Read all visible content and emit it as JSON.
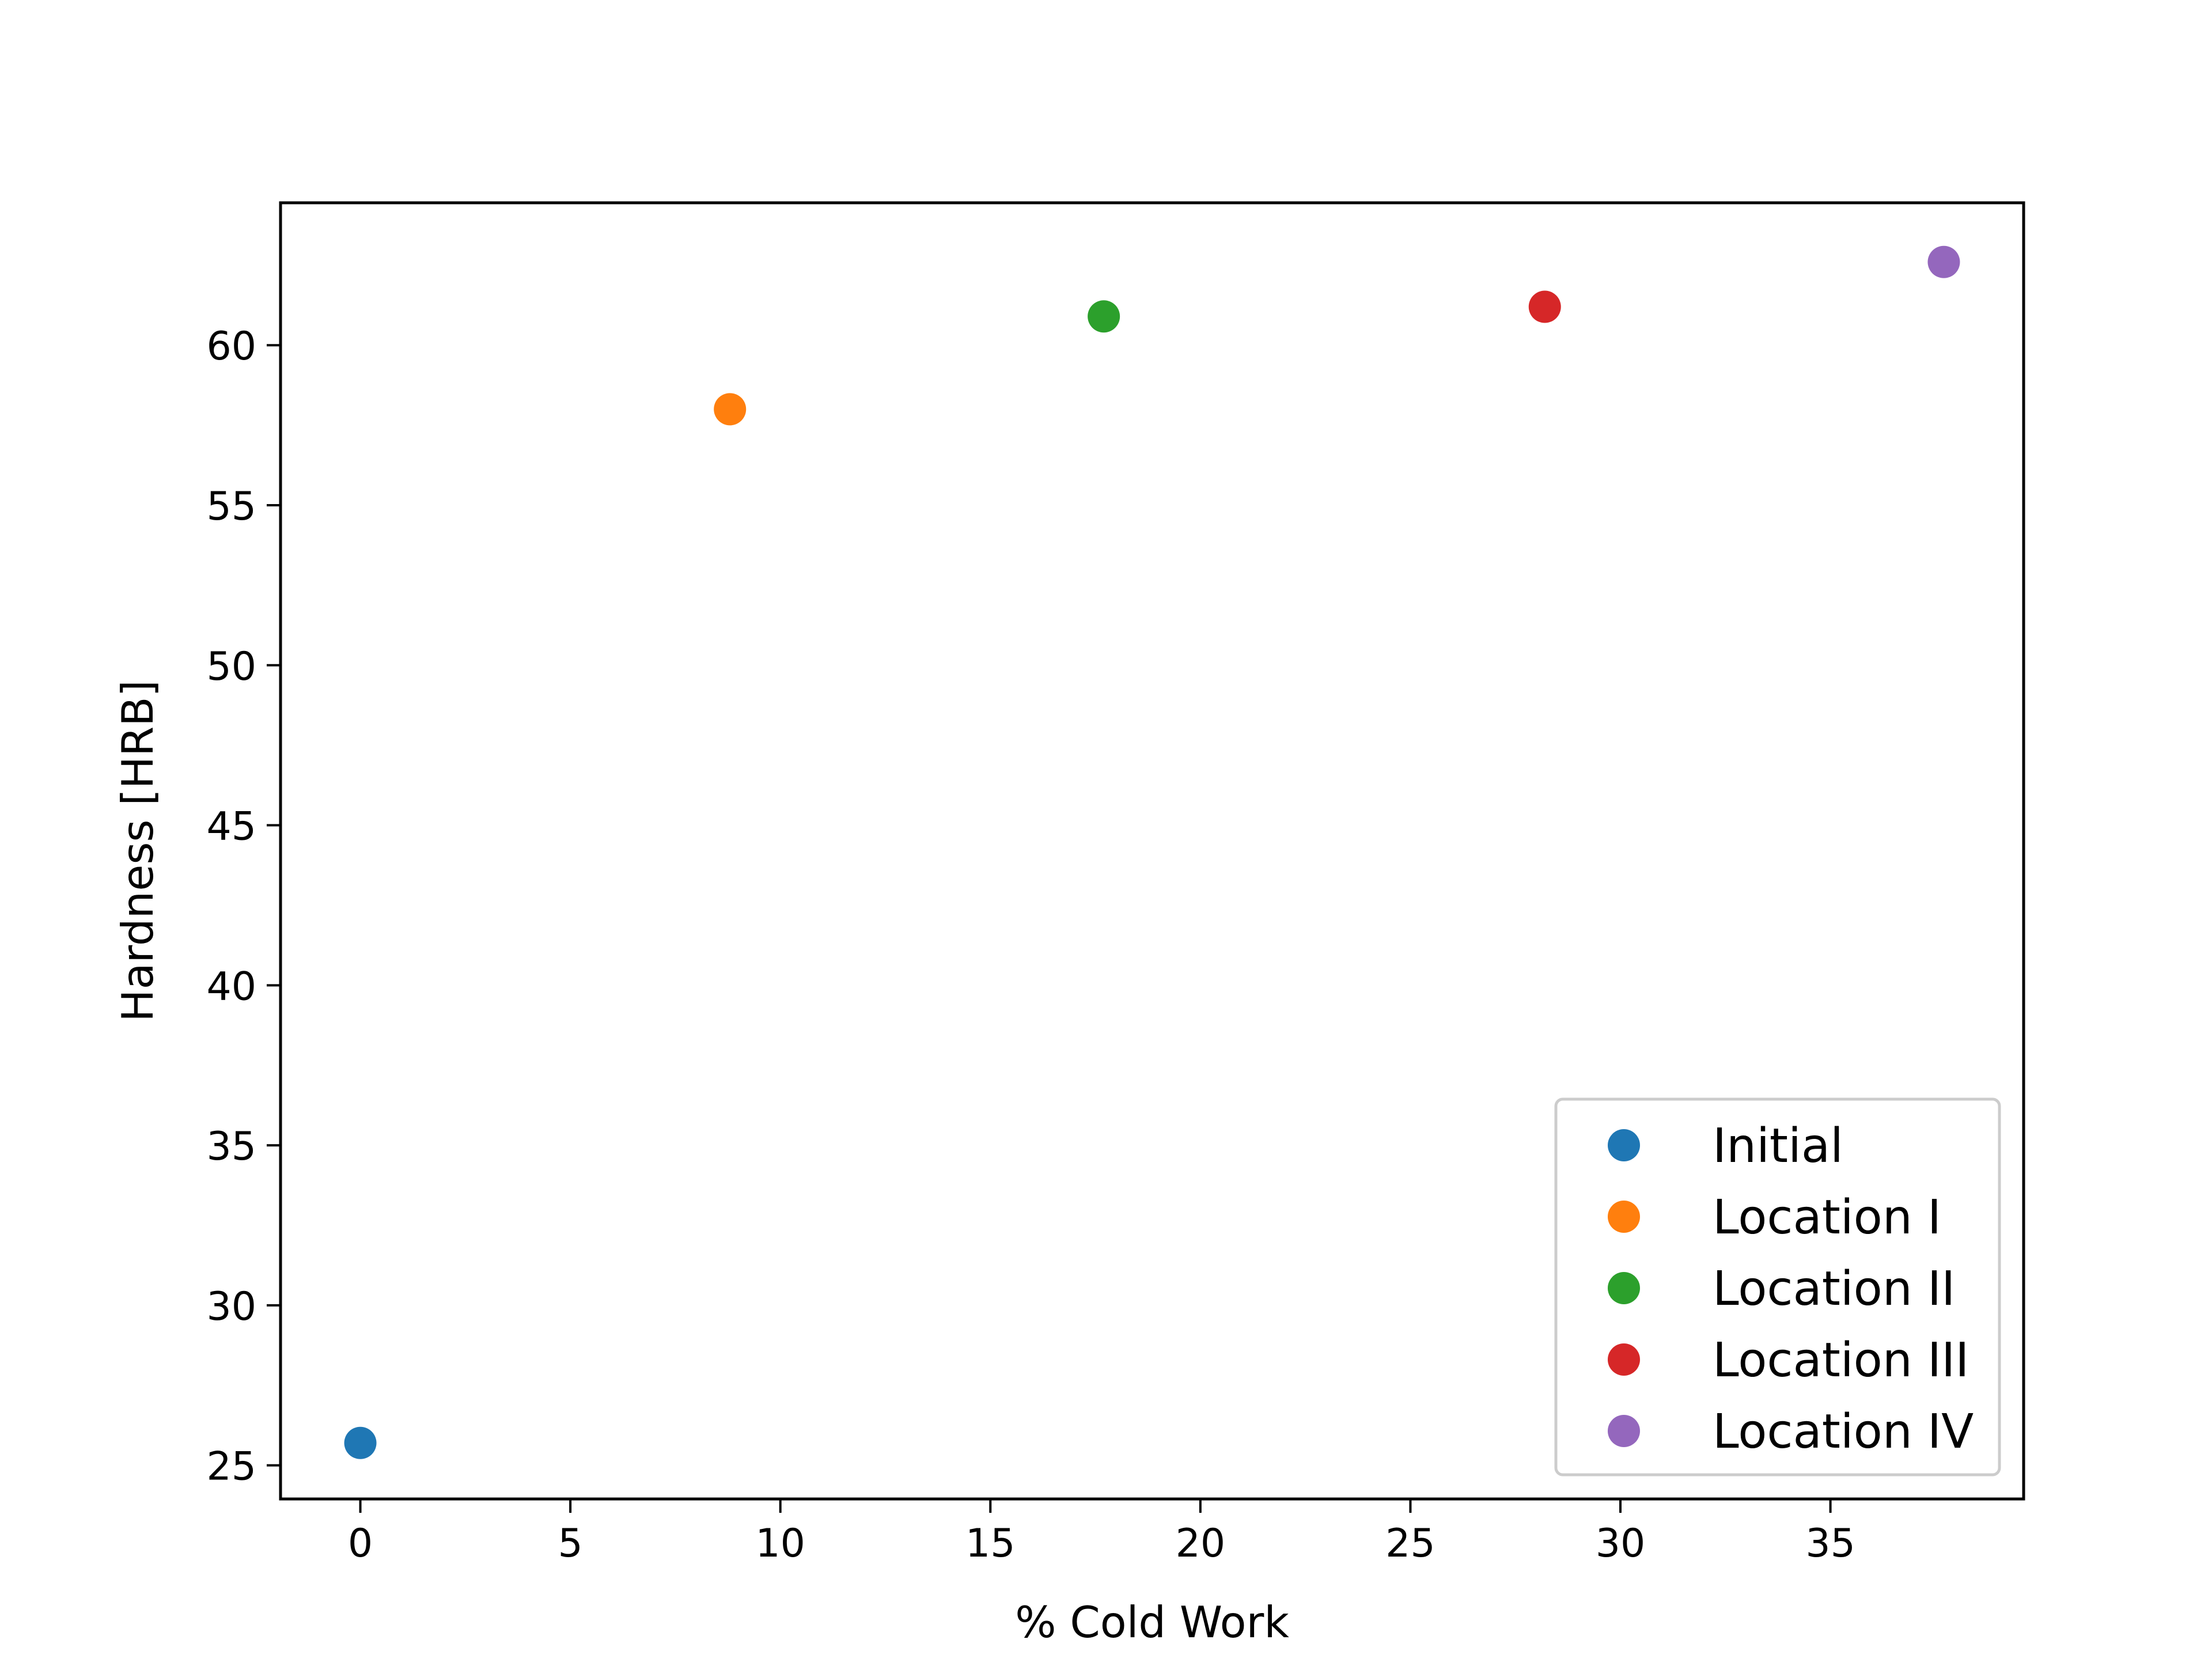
{
  "chart_data": {
    "type": "scatter",
    "title": "",
    "xlabel": "% Cold Work",
    "ylabel": "Hardness [HRB]",
    "xlim": [
      -1.9,
      39.6
    ],
    "ylim": [
      23.95,
      64.45
    ],
    "xticks": [
      0,
      5,
      10,
      15,
      20,
      25,
      30,
      35
    ],
    "yticks": [
      25,
      30,
      35,
      40,
      45,
      50,
      55,
      60
    ],
    "grid": false,
    "legend_position": "lower-right",
    "series": [
      {
        "name": "Initial",
        "color": "#1f77b4",
        "points": [
          {
            "x": 0,
            "y": 25.7
          }
        ]
      },
      {
        "name": "Location I",
        "color": "#ff7f0e",
        "points": [
          {
            "x": 8.8,
            "y": 58.0
          }
        ]
      },
      {
        "name": "Location II",
        "color": "#2ca02c",
        "points": [
          {
            "x": 17.7,
            "y": 60.9
          }
        ]
      },
      {
        "name": "Location III",
        "color": "#d62728",
        "points": [
          {
            "x": 28.2,
            "y": 61.2
          }
        ]
      },
      {
        "name": "Location IV",
        "color": "#9467bd",
        "points": [
          {
            "x": 37.7,
            "y": 62.6
          }
        ]
      }
    ]
  }
}
